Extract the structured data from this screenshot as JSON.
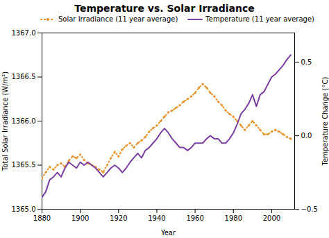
{
  "chart_data": {
    "type": "line",
    "title": "Temperature vs. Solar Irradiance",
    "xlabel": "Year",
    "ylabel": "Total Solar Irradiance (W/m²)",
    "y2label": "Temperature Change (°C)",
    "x": [
      1880,
      1882,
      1884,
      1886,
      1888,
      1890,
      1892,
      1894,
      1896,
      1898,
      1900,
      1902,
      1904,
      1906,
      1908,
      1910,
      1912,
      1914,
      1916,
      1918,
      1920,
      1922,
      1924,
      1926,
      1928,
      1930,
      1932,
      1934,
      1936,
      1938,
      1940,
      1942,
      1944,
      1946,
      1948,
      1950,
      1952,
      1954,
      1956,
      1958,
      1960,
      1962,
      1964,
      1966,
      1968,
      1970,
      1972,
      1974,
      1976,
      1978,
      1980,
      1982,
      1984,
      1986,
      1988,
      1990,
      1992,
      1994,
      1996,
      1998,
      2000,
      2002,
      2004,
      2006,
      2008,
      2010
    ],
    "series": [
      {
        "name": "Solar Irradiance (11 year average)",
        "color": "#E8922A",
        "line_style": "dotted",
        "marker": "circle",
        "values": [
          1365.35,
          1365.42,
          1365.48,
          1365.45,
          1365.5,
          1365.52,
          1365.48,
          1365.55,
          1365.6,
          1365.58,
          1365.62,
          1365.56,
          1365.52,
          1365.5,
          1365.48,
          1365.45,
          1365.42,
          1365.5,
          1365.58,
          1365.65,
          1365.6,
          1365.68,
          1365.72,
          1365.75,
          1365.7,
          1365.75,
          1365.78,
          1365.82,
          1365.88,
          1365.92,
          1365.95,
          1366.0,
          1366.05,
          1366.1,
          1366.12,
          1366.15,
          1366.18,
          1366.22,
          1366.25,
          1366.28,
          1366.32,
          1366.38,
          1366.42,
          1366.38,
          1366.32,
          1366.28,
          1366.22,
          1366.18,
          1366.12,
          1366.08,
          1366.05,
          1366.0,
          1365.95,
          1365.9,
          1365.95,
          1366.0,
          1365.95,
          1365.9,
          1365.85,
          1365.85,
          1365.88,
          1365.9,
          1365.88,
          1365.85,
          1365.82,
          1365.8
        ]
      },
      {
        "name": "Temperature (11 year average)",
        "color": "#7B3FA0",
        "line_style": "solid",
        "axis": "y2",
        "values": [
          -0.42,
          -0.38,
          -0.3,
          -0.28,
          -0.25,
          -0.28,
          -0.22,
          -0.18,
          -0.2,
          -0.22,
          -0.18,
          -0.2,
          -0.18,
          -0.2,
          -0.22,
          -0.25,
          -0.28,
          -0.25,
          -0.22,
          -0.2,
          -0.22,
          -0.25,
          -0.22,
          -0.18,
          -0.15,
          -0.12,
          -0.15,
          -0.1,
          -0.08,
          -0.05,
          -0.02,
          0.02,
          0.05,
          0.02,
          -0.02,
          -0.05,
          -0.08,
          -0.08,
          -0.1,
          -0.08,
          -0.05,
          -0.05,
          -0.05,
          -0.02,
          0.0,
          -0.02,
          -0.02,
          -0.05,
          -0.05,
          -0.02,
          0.02,
          0.08,
          0.15,
          0.18,
          0.22,
          0.28,
          0.2,
          0.28,
          0.3,
          0.35,
          0.4,
          0.42,
          0.45,
          0.48,
          0.52,
          0.55
        ]
      }
    ],
    "xlim": [
      1880,
      2012
    ],
    "xticks": [
      1880,
      1900,
      1920,
      1940,
      1960,
      1980,
      2000
    ],
    "ylim": [
      1365.0,
      1367.0
    ],
    "yticks": [
      {
        "value": 1365,
        "label": "1365.0"
      },
      {
        "value": 1365.5,
        "label": "1365.5"
      },
      {
        "value": 1366,
        "label": "1366.0"
      },
      {
        "value": 1366.5,
        "label": "1366.5"
      },
      {
        "value": 1367,
        "label": "1367.0"
      }
    ],
    "y2lim": [
      -0.5,
      0.7
    ],
    "y2ticks": [
      {
        "value": -0.5,
        "label": "−0.5"
      },
      {
        "value": 0,
        "label": "0.0"
      },
      {
        "value": 0.5,
        "label": "0.5"
      }
    ],
    "legend": "upper left",
    "grid": false
  }
}
